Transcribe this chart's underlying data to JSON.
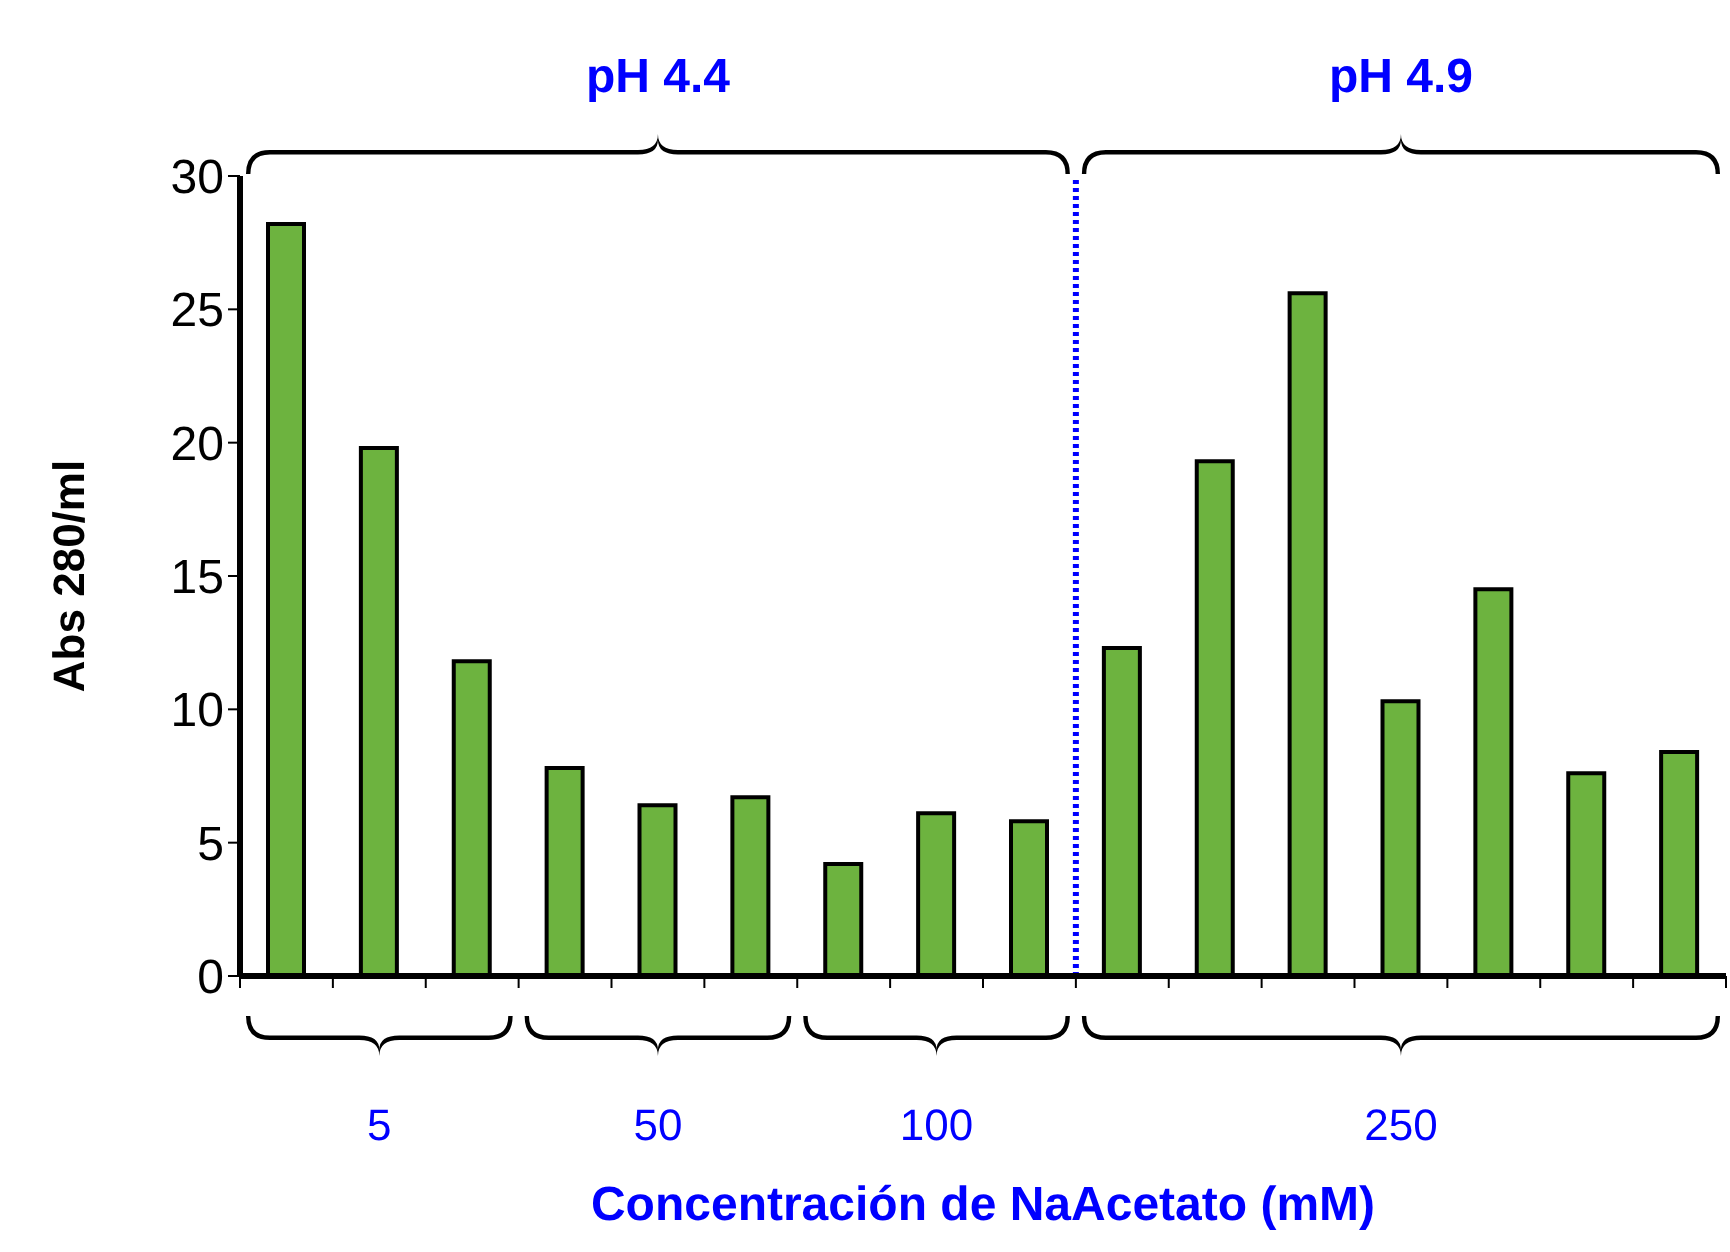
{
  "chart_data": {
    "type": "bar",
    "xlabel": "Concentración de NaAcetato (mM)",
    "ylabel": "Abs 280/ml",
    "categories": [
      null,
      null,
      null,
      null,
      null,
      null,
      null,
      null,
      null,
      null,
      null,
      null,
      null,
      null,
      null,
      null
    ],
    "values": [
      28.2,
      19.8,
      11.8,
      7.8,
      6.4,
      6.7,
      4.2,
      6.1,
      5.8,
      12.3,
      19.3,
      25.6,
      10.3,
      14.5,
      7.6,
      8.4
    ],
    "color": "#6db33f",
    "ylim": [
      0,
      30
    ],
    "yticks": [
      0,
      5,
      10,
      15,
      20,
      25,
      30
    ],
    "annotations": [
      "pH 4.4",
      "pH 4.9",
      "5",
      "50",
      "100",
      "250"
    ],
    "grid": false,
    "legend": false
  }
}
